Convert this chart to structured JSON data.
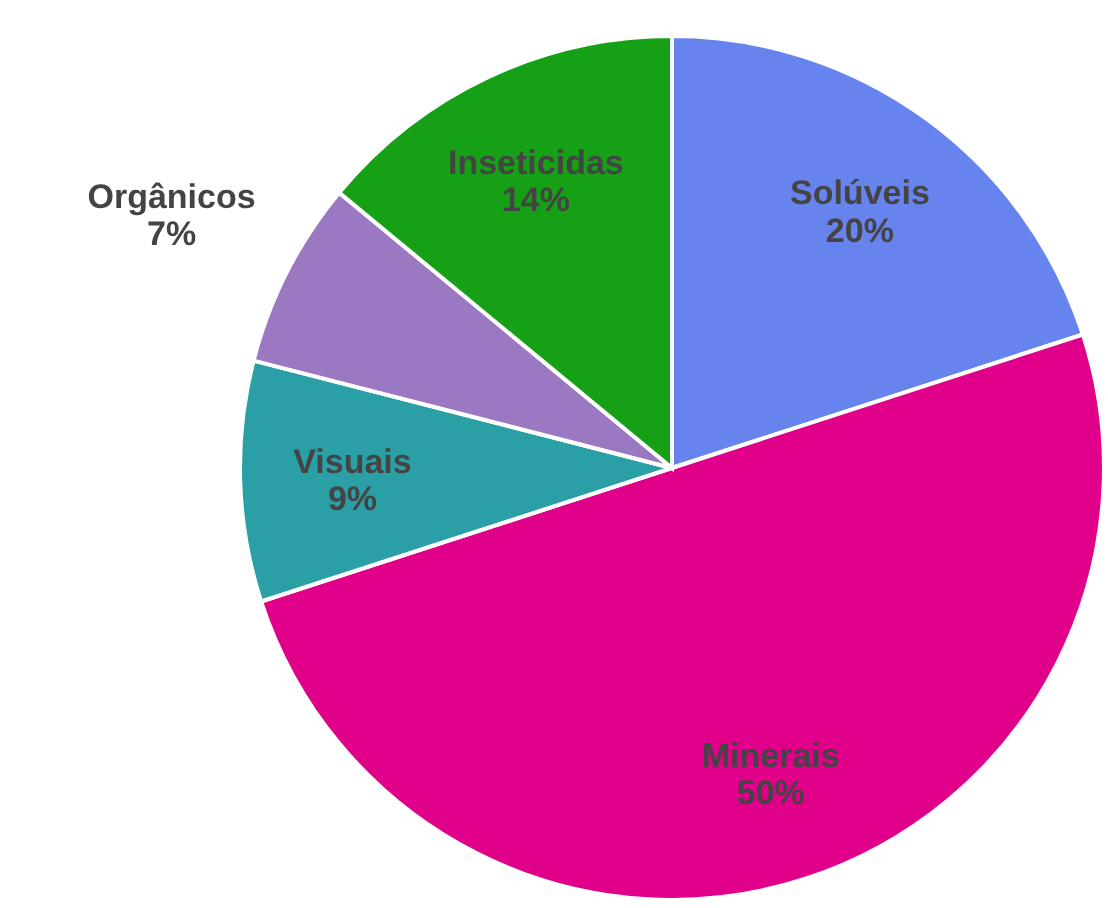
{
  "chart_data": {
    "type": "pie",
    "categories": [
      "Solúveis",
      "Minerais",
      "Visuais",
      "Orgânicos",
      "Inseticidas"
    ],
    "values": [
      20,
      50,
      9,
      7,
      14
    ],
    "value_labels": [
      "20%",
      "50%",
      "9%",
      "7%",
      "14%"
    ],
    "colors": [
      "#6683ee",
      "#e0008a",
      "#2a9fa6",
      "#9a78c2",
      "#15a015"
    ]
  }
}
